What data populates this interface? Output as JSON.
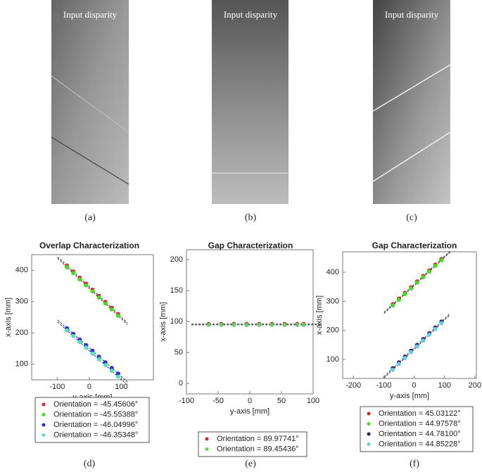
{
  "images": [
    {
      "label": "Input disparity",
      "caption": "(a)"
    },
    {
      "label": "Input disparity",
      "caption": "(b)"
    },
    {
      "label": "Input disparity",
      "caption": "(c)"
    }
  ],
  "chart_data": [
    {
      "type": "scatter",
      "title": "Overlap Characterization",
      "x_label": "y-axis [mm]",
      "y_label": "x-axis [mm]",
      "caption": "(d)",
      "xlim": [
        -180,
        200
      ],
      "ylim": [
        50,
        450
      ],
      "xticks": [
        -100,
        0,
        100
      ],
      "yticks": [
        100,
        200,
        300,
        400
      ],
      "series": [
        {
          "name": "Orientation = -45.45606°",
          "color": "#e02020",
          "x": [
            -70,
            -50,
            -30,
            -10,
            10,
            30,
            50,
            70,
            90
          ],
          "values": [
            415,
            396,
            376,
            357,
            338,
            318,
            299,
            280,
            260
          ]
        },
        {
          "name": "Orientation = -45.55388°",
          "color": "#44dd22",
          "x": [
            -70,
            -50,
            -30,
            -10,
            10,
            30,
            50,
            70,
            90
          ],
          "values": [
            410,
            391,
            371,
            352,
            333,
            313,
            294,
            275,
            255
          ]
        },
        {
          "name": "Orientation = -46.04996°",
          "color": "#2233dd",
          "x": [
            -70,
            -50,
            -30,
            -10,
            10,
            30,
            50,
            70,
            90
          ],
          "values": [
            215,
            197,
            179,
            161,
            143,
            124,
            106,
            88,
            70
          ]
        },
        {
          "name": "Orientation = -46.35348°",
          "color": "#55e0c0",
          "x": [
            -70,
            -50,
            -30,
            -10,
            10,
            30,
            50,
            70,
            90
          ],
          "values": [
            208,
            190,
            171,
            153,
            134,
            116,
            97,
            79,
            60
          ]
        }
      ]
    },
    {
      "type": "scatter",
      "title": "Gap Characterization",
      "x_label": "y-axis [mm]",
      "y_label": "x-axis [mm]",
      "caption": "(e)",
      "xlim": [
        -100,
        100
      ],
      "ylim": [
        -17,
        216
      ],
      "xticks": [
        -100,
        -50,
        0,
        50,
        100
      ],
      "yticks": [
        0,
        50,
        100,
        150,
        200
      ],
      "series": [
        {
          "name": "Orientation = 89.97741°",
          "color": "#c03030",
          "x": [
            -65,
            -45,
            -25,
            -5,
            15,
            35,
            55,
            75,
            85
          ],
          "values": [
            96,
            96,
            96,
            96,
            96,
            96,
            96,
            96,
            96
          ]
        },
        {
          "name": "Orientation = 89.45436°",
          "color": "#66cc66",
          "x": [
            -65,
            -45,
            -25,
            -5,
            15,
            35,
            55,
            75,
            85
          ],
          "values": [
            94.5,
            94.5,
            94.5,
            94.5,
            94.5,
            94.5,
            94.5,
            94.5,
            94.5
          ]
        }
      ]
    },
    {
      "type": "scatter",
      "title": "Gap Characterization",
      "x_label": "y-axis [mm]",
      "y_label": "x-axis [mm]",
      "caption": "(f)",
      "xlim": [
        -235,
        205
      ],
      "ylim": [
        35,
        470
      ],
      "xticks": [
        -200,
        -100,
        0,
        100,
        200
      ],
      "yticks": [
        100,
        200,
        300,
        400
      ],
      "series": [
        {
          "name": "Orientation = 45.03122°",
          "color": "#e02020",
          "x": [
            -70,
            -50,
            -30,
            -10,
            10,
            30,
            50,
            70,
            90
          ],
          "values": [
            290,
            309,
            329,
            348,
            368,
            387,
            406,
            426,
            445
          ]
        },
        {
          "name": "Orientation = 44.97578°",
          "color": "#44dd22",
          "x": [
            -70,
            -50,
            -30,
            -10,
            10,
            30,
            50,
            70,
            90
          ],
          "values": [
            286,
            305,
            325,
            344,
            364,
            383,
            402,
            422,
            441
          ]
        },
        {
          "name": "Orientation = 44.78100°",
          "color": "#222266",
          "x": [
            -70,
            -50,
            -30,
            -10,
            10,
            30,
            50,
            70,
            90
          ],
          "values": [
            70,
            90,
            110,
            130,
            150,
            170,
            190,
            210,
            230
          ]
        },
        {
          "name": "Orientation = 44.85228°",
          "color": "#66ccee",
          "x": [
            -70,
            -50,
            -30,
            -10,
            10,
            30,
            50,
            70,
            90
          ],
          "values": [
            65,
            85,
            105,
            125,
            145,
            165,
            185,
            205,
            225
          ]
        }
      ]
    }
  ]
}
